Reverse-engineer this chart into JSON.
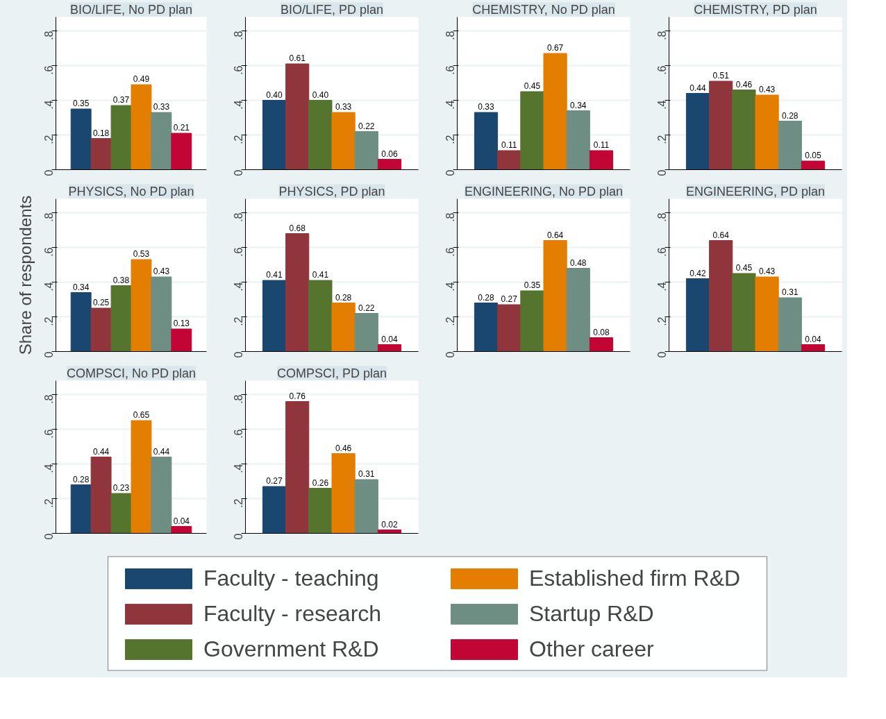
{
  "chart_data": [
    {
      "type": "bar",
      "title": "BIO/LIFE, No PD plan",
      "categories": [
        null
      ],
      "ylim": [
        0,
        0.88
      ],
      "yticks": [
        {
          "value": 0,
          "label": "0"
        },
        {
          "value": 0.2,
          "label": ".2"
        },
        {
          "value": 0.4,
          "label": ".4"
        },
        {
          "value": 0.6,
          "label": ".6"
        },
        {
          "value": 0.8,
          "label": ".8"
        }
      ],
      "grid": "y",
      "tick_labels": "y",
      "series": [
        {
          "color": "#1a476f",
          "values": [
            0.35
          ],
          "value_labels": [
            "0.35"
          ]
        },
        {
          "color": "#90353b",
          "values": [
            0.18
          ],
          "value_labels": [
            "0.18"
          ]
        },
        {
          "color": "#55752f",
          "values": [
            0.37
          ],
          "value_labels": [
            "0.37"
          ]
        },
        {
          "color": "#e37e00",
          "values": [
            0.49
          ],
          "value_labels": [
            "0.49"
          ]
        },
        {
          "color": "#6e8e84",
          "values": [
            0.33
          ],
          "value_labels": [
            "0.33"
          ]
        },
        {
          "color": "#c10534",
          "values": [
            0.21
          ],
          "value_labels": [
            "0.21"
          ]
        }
      ]
    },
    {
      "type": "bar",
      "title": "BIO/LIFE, PD plan",
      "categories": [
        null
      ],
      "ylim": [
        0,
        0.88
      ],
      "yticks": [
        {
          "value": 0,
          "label": "0"
        },
        {
          "value": 0.2,
          "label": ".2"
        },
        {
          "value": 0.4,
          "label": ".4"
        },
        {
          "value": 0.6,
          "label": ".6"
        },
        {
          "value": 0.8,
          "label": ".8"
        }
      ],
      "grid": "y",
      "tick_labels": "y",
      "series": [
        {
          "color": "#1a476f",
          "values": [
            0.4
          ],
          "value_labels": [
            "0.40"
          ]
        },
        {
          "color": "#90353b",
          "values": [
            0.61
          ],
          "value_labels": [
            "0.61"
          ]
        },
        {
          "color": "#55752f",
          "values": [
            0.4
          ],
          "value_labels": [
            "0.40"
          ]
        },
        {
          "color": "#e37e00",
          "values": [
            0.33
          ],
          "value_labels": [
            "0.33"
          ]
        },
        {
          "color": "#6e8e84",
          "values": [
            0.22
          ],
          "value_labels": [
            "0.22"
          ]
        },
        {
          "color": "#c10534",
          "values": [
            0.06
          ],
          "value_labels": [
            "0.06"
          ]
        }
      ]
    },
    {
      "type": "bar",
      "title": "CHEMISTRY, No PD plan",
      "categories": [
        null
      ],
      "ylim": [
        0,
        0.88
      ],
      "yticks": [
        {
          "value": 0,
          "label": "0"
        },
        {
          "value": 0.2,
          "label": ".2"
        },
        {
          "value": 0.4,
          "label": ".4"
        },
        {
          "value": 0.6,
          "label": ".6"
        },
        {
          "value": 0.8,
          "label": ".8"
        }
      ],
      "grid": "y",
      "tick_labels": "y",
      "series": [
        {
          "color": "#1a476f",
          "values": [
            0.33
          ],
          "value_labels": [
            "0.33"
          ]
        },
        {
          "color": "#90353b",
          "values": [
            0.11
          ],
          "value_labels": [
            "0.11"
          ]
        },
        {
          "color": "#55752f",
          "values": [
            0.45
          ],
          "value_labels": [
            "0.45"
          ]
        },
        {
          "color": "#e37e00",
          "values": [
            0.67
          ],
          "value_labels": [
            "0.67"
          ]
        },
        {
          "color": "#6e8e84",
          "values": [
            0.34
          ],
          "value_labels": [
            "0.34"
          ]
        },
        {
          "color": "#c10534",
          "values": [
            0.11
          ],
          "value_labels": [
            "0.11"
          ]
        }
      ]
    },
    {
      "type": "bar",
      "title": "CHEMISTRY, PD plan",
      "categories": [
        null
      ],
      "ylim": [
        0,
        0.88
      ],
      "yticks": [
        {
          "value": 0,
          "label": "0"
        },
        {
          "value": 0.2,
          "label": ".2"
        },
        {
          "value": 0.4,
          "label": ".4"
        },
        {
          "value": 0.6,
          "label": ".6"
        },
        {
          "value": 0.8,
          "label": ".8"
        }
      ],
      "grid": "y",
      "tick_labels": "y",
      "series": [
        {
          "color": "#1a476f",
          "values": [
            0.44
          ],
          "value_labels": [
            "0.44"
          ]
        },
        {
          "color": "#90353b",
          "values": [
            0.51
          ],
          "value_labels": [
            "0.51"
          ]
        },
        {
          "color": "#55752f",
          "values": [
            0.46
          ],
          "value_labels": [
            "0.46"
          ]
        },
        {
          "color": "#e37e00",
          "values": [
            0.43
          ],
          "value_labels": [
            "0.43"
          ]
        },
        {
          "color": "#6e8e84",
          "values": [
            0.28
          ],
          "value_labels": [
            "0.28"
          ]
        },
        {
          "color": "#c10534",
          "values": [
            0.05
          ],
          "value_labels": [
            "0.05"
          ]
        }
      ]
    },
    {
      "type": "bar",
      "title": "PHYSICS, No PD plan",
      "ylabel": "Share of respondents",
      "categories": [
        null
      ],
      "ylim": [
        0,
        0.88
      ],
      "yticks": [
        {
          "value": 0,
          "label": "0"
        },
        {
          "value": 0.2,
          "label": ".2"
        },
        {
          "value": 0.4,
          "label": ".4"
        },
        {
          "value": 0.6,
          "label": ".6"
        },
        {
          "value": 0.8,
          "label": ".8"
        }
      ],
      "grid": "y",
      "tick_labels": "y",
      "series": [
        {
          "color": "#1a476f",
          "values": [
            0.34
          ],
          "value_labels": [
            "0.34"
          ]
        },
        {
          "color": "#90353b",
          "values": [
            0.25
          ],
          "value_labels": [
            "0.25"
          ]
        },
        {
          "color": "#55752f",
          "values": [
            0.38
          ],
          "value_labels": [
            "0.38"
          ]
        },
        {
          "color": "#e37e00",
          "values": [
            0.53
          ],
          "value_labels": [
            "0.53"
          ]
        },
        {
          "color": "#6e8e84",
          "values": [
            0.43
          ],
          "value_labels": [
            "0.43"
          ]
        },
        {
          "color": "#c10534",
          "values": [
            0.13
          ],
          "value_labels": [
            "0.13"
          ]
        }
      ]
    },
    {
      "type": "bar",
      "title": "PHYSICS, PD plan",
      "categories": [
        null
      ],
      "ylim": [
        0,
        0.88
      ],
      "yticks": [
        {
          "value": 0,
          "label": "0"
        },
        {
          "value": 0.2,
          "label": ".2"
        },
        {
          "value": 0.4,
          "label": ".4"
        },
        {
          "value": 0.6,
          "label": ".6"
        },
        {
          "value": 0.8,
          "label": ".8"
        }
      ],
      "grid": "y",
      "tick_labels": "y",
      "series": [
        {
          "color": "#1a476f",
          "values": [
            0.41
          ],
          "value_labels": [
            "0.41"
          ]
        },
        {
          "color": "#90353b",
          "values": [
            0.68
          ],
          "value_labels": [
            "0.68"
          ]
        },
        {
          "color": "#55752f",
          "values": [
            0.41
          ],
          "value_labels": [
            "0.41"
          ]
        },
        {
          "color": "#e37e00",
          "values": [
            0.28
          ],
          "value_labels": [
            "0.28"
          ]
        },
        {
          "color": "#6e8e84",
          "values": [
            0.22
          ],
          "value_labels": [
            "0.22"
          ]
        },
        {
          "color": "#c10534",
          "values": [
            0.04
          ],
          "value_labels": [
            "0.04"
          ]
        }
      ]
    },
    {
      "type": "bar",
      "title": "ENGINEERING, No PD plan",
      "categories": [
        null
      ],
      "ylim": [
        0,
        0.88
      ],
      "yticks": [
        {
          "value": 0,
          "label": "0"
        },
        {
          "value": 0.2,
          "label": ".2"
        },
        {
          "value": 0.4,
          "label": ".4"
        },
        {
          "value": 0.6,
          "label": ".6"
        },
        {
          "value": 0.8,
          "label": ".8"
        }
      ],
      "grid": "y",
      "tick_labels": "y",
      "series": [
        {
          "color": "#1a476f",
          "values": [
            0.28
          ],
          "value_labels": [
            "0.28"
          ]
        },
        {
          "color": "#90353b",
          "values": [
            0.27
          ],
          "value_labels": [
            "0.27"
          ]
        },
        {
          "color": "#55752f",
          "values": [
            0.35
          ],
          "value_labels": [
            "0.35"
          ]
        },
        {
          "color": "#e37e00",
          "values": [
            0.64
          ],
          "value_labels": [
            "0.64"
          ]
        },
        {
          "color": "#6e8e84",
          "values": [
            0.48
          ],
          "value_labels": [
            "0.48"
          ]
        },
        {
          "color": "#c10534",
          "values": [
            0.08
          ],
          "value_labels": [
            "0.08"
          ]
        }
      ]
    },
    {
      "type": "bar",
      "title": "ENGINEERING, PD plan",
      "categories": [
        null
      ],
      "ylim": [
        0,
        0.88
      ],
      "yticks": [
        {
          "value": 0,
          "label": "0"
        },
        {
          "value": 0.2,
          "label": ".2"
        },
        {
          "value": 0.4,
          "label": ".4"
        },
        {
          "value": 0.6,
          "label": ".6"
        },
        {
          "value": 0.8,
          "label": ".8"
        }
      ],
      "grid": "y",
      "tick_labels": "y",
      "series": [
        {
          "color": "#1a476f",
          "values": [
            0.42
          ],
          "value_labels": [
            "0.42"
          ]
        },
        {
          "color": "#90353b",
          "values": [
            0.64
          ],
          "value_labels": [
            "0.64"
          ]
        },
        {
          "color": "#55752f",
          "values": [
            0.45
          ],
          "value_labels": [
            "0.45"
          ]
        },
        {
          "color": "#e37e00",
          "values": [
            0.43
          ],
          "value_labels": [
            "0.43"
          ]
        },
        {
          "color": "#6e8e84",
          "values": [
            0.31
          ],
          "value_labels": [
            "0.31"
          ]
        },
        {
          "color": "#c10534",
          "values": [
            0.04
          ],
          "value_labels": [
            "0.04"
          ]
        }
      ]
    },
    {
      "type": "bar",
      "title": "COMPSCI, No PD plan",
      "categories": [
        null
      ],
      "ylim": [
        0,
        0.88
      ],
      "yticks": [
        {
          "value": 0,
          "label": "0"
        },
        {
          "value": 0.2,
          "label": ".2"
        },
        {
          "value": 0.4,
          "label": ".4"
        },
        {
          "value": 0.6,
          "label": ".6"
        },
        {
          "value": 0.8,
          "label": ".8"
        }
      ],
      "grid": "y",
      "tick_labels": "y",
      "series": [
        {
          "color": "#1a476f",
          "values": [
            0.28
          ],
          "value_labels": [
            "0.28"
          ]
        },
        {
          "color": "#90353b",
          "values": [
            0.44
          ],
          "value_labels": [
            "0.44"
          ]
        },
        {
          "color": "#55752f",
          "values": [
            0.23
          ],
          "value_labels": [
            "0.23"
          ]
        },
        {
          "color": "#e37e00",
          "values": [
            0.65
          ],
          "value_labels": [
            "0.65"
          ]
        },
        {
          "color": "#6e8e84",
          "values": [
            0.44
          ],
          "value_labels": [
            "0.44"
          ]
        },
        {
          "color": "#c10534",
          "values": [
            0.04
          ],
          "value_labels": [
            "0.04"
          ]
        }
      ]
    },
    {
      "type": "bar",
      "title": "COMPSCI, PD plan",
      "categories": [
        null
      ],
      "ylim": [
        0,
        0.88
      ],
      "yticks": [
        {
          "value": 0,
          "label": "0"
        },
        {
          "value": 0.2,
          "label": ".2"
        },
        {
          "value": 0.4,
          "label": ".4"
        },
        {
          "value": 0.6,
          "label": ".6"
        },
        {
          "value": 0.8,
          "label": ".8"
        }
      ],
      "grid": "y",
      "tick_labels": "y",
      "legend": "bottom",
      "series": [
        {
          "name": "Faculty - teaching",
          "color": "#1a476f",
          "values": [
            0.27
          ],
          "value_labels": [
            "0.27"
          ]
        },
        {
          "name": "Faculty - research",
          "color": "#90353b",
          "values": [
            0.76
          ],
          "value_labels": [
            "0.76"
          ]
        },
        {
          "name": "Government R&D",
          "color": "#55752f",
          "values": [
            0.26
          ],
          "value_labels": [
            "0.26"
          ]
        },
        {
          "name": "Established firm R&D",
          "color": "#e37e00",
          "values": [
            0.46
          ],
          "value_labels": [
            "0.46"
          ]
        },
        {
          "name": "Startup R&D",
          "color": "#6e8e84",
          "values": [
            0.31
          ],
          "value_labels": [
            "0.31"
          ]
        },
        {
          "name": "Other career",
          "color": "#c10534",
          "values": [
            0.02
          ],
          "value_labels": [
            "0.02"
          ]
        }
      ]
    }
  ]
}
